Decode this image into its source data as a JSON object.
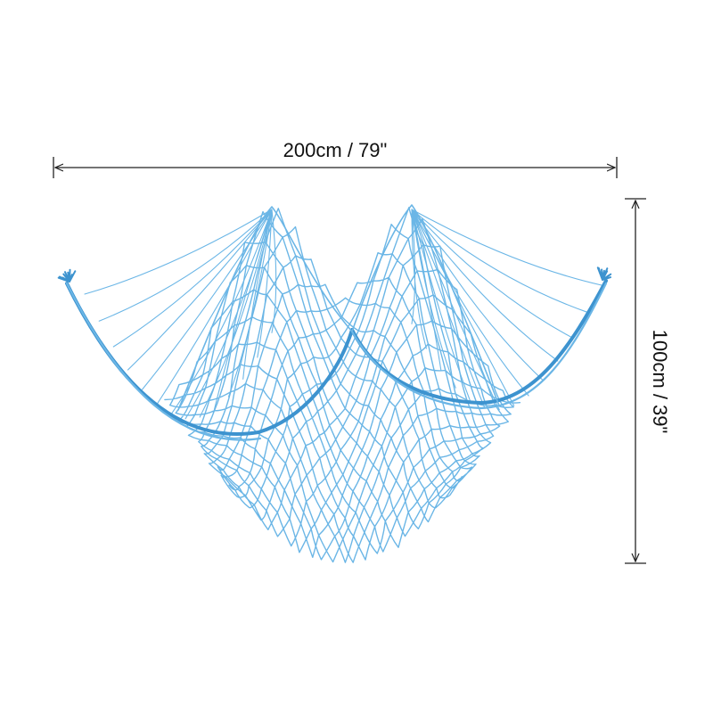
{
  "product": {
    "name": "fishing-net-decoration",
    "net_color": "#6bb6e6",
    "net_color_dark": "#3d93cf",
    "line_color": "#222222"
  },
  "dimensions": {
    "width_label": "200cm / 79\"",
    "height_label": "100cm / 39\""
  }
}
